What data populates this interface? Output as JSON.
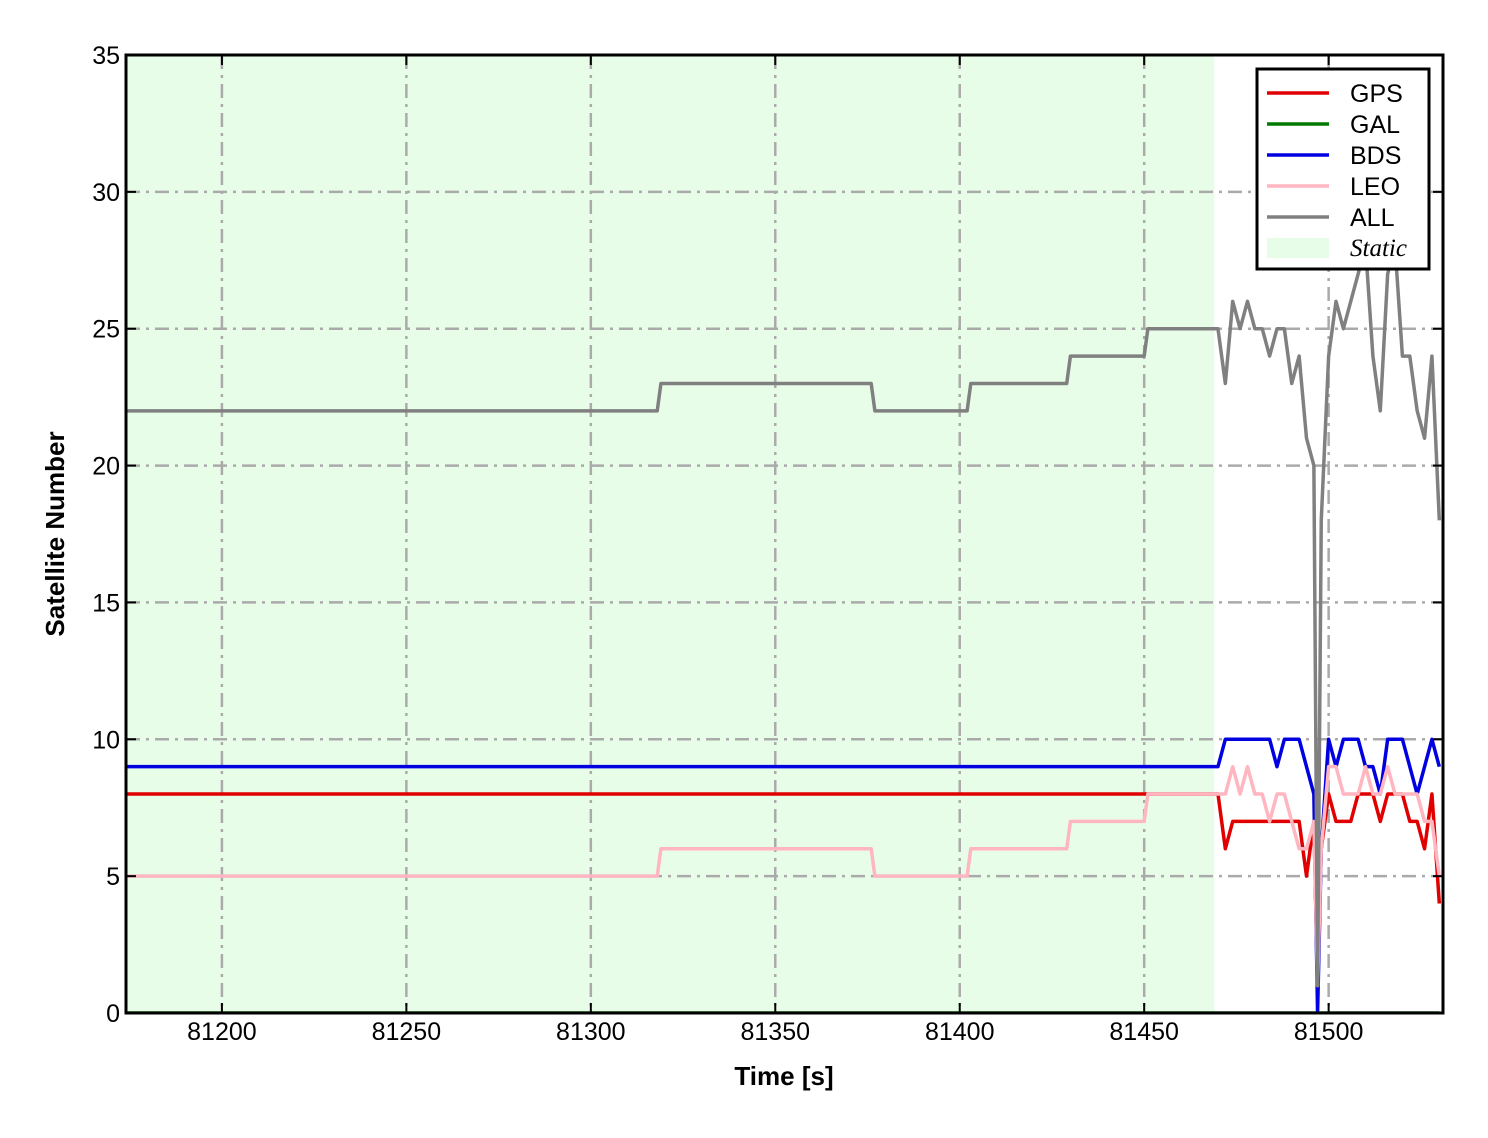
{
  "chart_data": {
    "type": "line",
    "xlabel": "Time [s]",
    "ylabel": "Satellite Number",
    "xlim": [
      81174,
      81531
    ],
    "ylim": [
      0,
      35
    ],
    "xticks": [
      81200,
      81250,
      81300,
      81350,
      81400,
      81450,
      81500
    ],
    "yticks": [
      0,
      5,
      10,
      15,
      20,
      25,
      30,
      35
    ],
    "grid": true,
    "legend": "upper right",
    "shaded_regions": [
      {
        "name": "Static",
        "color": "#e8fde8",
        "x": [
          81174,
          81469
        ]
      }
    ],
    "x": [
      81174,
      81318,
      81319,
      81376,
      81377,
      81402,
      81403,
      81429,
      81430,
      81450,
      81451,
      81470,
      81472,
      81474,
      81476,
      81478,
      81480,
      81482,
      81484,
      81486,
      81488,
      81490,
      81492,
      81494,
      81496,
      81497,
      81498,
      81500,
      81502,
      81504,
      81506,
      81508,
      81510,
      81512,
      81514,
      81516,
      81518,
      81520,
      81522,
      81524,
      81526,
      81528,
      81530
    ],
    "series": [
      {
        "name": "GPS",
        "color": "#e00000",
        "values": [
          8,
          8,
          8,
          8,
          8,
          8,
          8,
          8,
          8,
          8,
          8,
          8,
          6,
          7,
          7,
          7,
          7,
          7,
          7,
          7,
          7,
          7,
          7,
          5,
          7,
          1,
          6,
          8,
          7,
          7,
          7,
          8,
          8,
          8,
          7,
          8,
          8,
          8,
          7,
          7,
          6,
          8,
          4
        ]
      },
      {
        "name": "GAL",
        "color": "#007a00",
        "values": [
          0,
          0,
          0,
          0,
          0,
          0,
          0,
          0,
          0,
          0,
          0,
          0,
          0,
          0,
          0,
          0,
          0,
          0,
          0,
          0,
          0,
          0,
          0,
          0,
          0,
          0,
          0,
          0,
          0,
          0,
          0,
          0,
          0,
          0,
          0,
          0,
          0,
          0,
          0,
          0,
          0,
          0,
          0
        ]
      },
      {
        "name": "BDS",
        "color": "#0000e0",
        "values": [
          9,
          9,
          9,
          9,
          9,
          9,
          9,
          9,
          9,
          9,
          9,
          9,
          10,
          10,
          10,
          10,
          10,
          10,
          10,
          9,
          10,
          10,
          10,
          9,
          8,
          0,
          6,
          10,
          9,
          10,
          10,
          10,
          9,
          9,
          8,
          10,
          10,
          10,
          9,
          8,
          9,
          10,
          9
        ]
      },
      {
        "name": "LEO",
        "color": "#ffb6c1",
        "values": [
          5,
          5,
          6,
          6,
          5,
          5,
          6,
          6,
          7,
          7,
          8,
          8,
          8,
          9,
          8,
          9,
          8,
          8,
          7,
          8,
          8,
          7,
          6,
          6,
          7,
          1,
          6,
          9,
          9,
          8,
          8,
          8,
          9,
          8,
          8,
          9,
          8,
          8,
          8,
          8,
          7,
          7,
          5
        ]
      },
      {
        "name": "ALL",
        "color": "#808080",
        "values": [
          22,
          22,
          23,
          23,
          22,
          22,
          23,
          23,
          24,
          24,
          25,
          25,
          23,
          26,
          25,
          26,
          25,
          25,
          24,
          25,
          25,
          23,
          24,
          21,
          20,
          1,
          18,
          24,
          26,
          25,
          26,
          27,
          28,
          24,
          22,
          27,
          28,
          24,
          24,
          22,
          21,
          24,
          18
        ]
      }
    ]
  }
}
